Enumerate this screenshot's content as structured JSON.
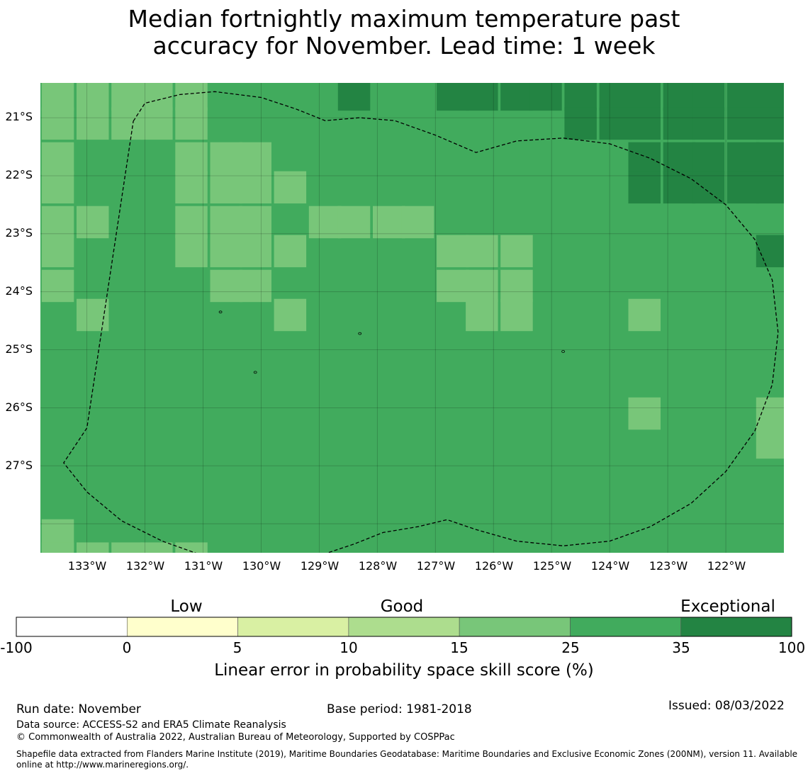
{
  "title": {
    "line1": "Median fortnightly maximum temperature past",
    "line2": "accuracy for November. Lead time: 1 week"
  },
  "map": {
    "lat_labels": [
      "21°S",
      "22°S",
      "23°S",
      "24°S",
      "25°S",
      "26°S",
      "27°S"
    ],
    "lon_labels": [
      "133°W",
      "132°W",
      "131°W",
      "130°W",
      "129°W",
      "128°W",
      "127°W",
      "126°W",
      "125°W",
      "124°W",
      "123°W",
      "122°W"
    ],
    "extent": {
      "lon_min": -133.8,
      "lon_max": -121.0,
      "lat_min": -28.5,
      "lat_max": -20.4
    },
    "grid_resolution_deg": 0.5556,
    "base_category": "25-35",
    "colors": {
      "15-25": "#78c679",
      "25-35": "#41ab5d",
      "35-100": "#238443"
    },
    "cells": [
      {
        "lon": -133.5,
        "lat": -20.6,
        "cat": "15-25"
      },
      {
        "lon": -132.9,
        "lat": -20.6,
        "cat": "15-25"
      },
      {
        "lon": -132.3,
        "lat": -20.6,
        "cat": "15-25"
      },
      {
        "lon": -131.8,
        "lat": -20.6,
        "cat": "15-25"
      },
      {
        "lon": -131.2,
        "lat": -20.6,
        "cat": "15-25"
      },
      {
        "lon": -128.4,
        "lat": -20.6,
        "cat": "35-100"
      },
      {
        "lon": -126.7,
        "lat": -20.6,
        "cat": "35-100"
      },
      {
        "lon": -126.2,
        "lat": -20.6,
        "cat": "35-100"
      },
      {
        "lon": -125.6,
        "lat": -20.6,
        "cat": "35-100"
      },
      {
        "lon": -125.1,
        "lat": -20.6,
        "cat": "35-100"
      },
      {
        "lon": -124.5,
        "lat": -20.6,
        "cat": "35-100"
      },
      {
        "lon": -123.9,
        "lat": -20.6,
        "cat": "35-100"
      },
      {
        "lon": -123.4,
        "lat": -20.6,
        "cat": "35-100"
      },
      {
        "lon": -122.8,
        "lat": -20.6,
        "cat": "35-100"
      },
      {
        "lon": -122.3,
        "lat": -20.6,
        "cat": "35-100"
      },
      {
        "lon": -121.7,
        "lat": -20.6,
        "cat": "35-100"
      },
      {
        "lon": -121.2,
        "lat": -20.6,
        "cat": "35-100"
      },
      {
        "lon": -133.5,
        "lat": -21.1,
        "cat": "15-25"
      },
      {
        "lon": -132.9,
        "lat": -21.1,
        "cat": "15-25"
      },
      {
        "lon": -132.3,
        "lat": -21.1,
        "cat": "15-25"
      },
      {
        "lon": -131.8,
        "lat": -21.1,
        "cat": "15-25"
      },
      {
        "lon": -131.2,
        "lat": -21.1,
        "cat": "15-25"
      },
      {
        "lon": -124.5,
        "lat": -21.1,
        "cat": "35-100"
      },
      {
        "lon": -123.9,
        "lat": -21.1,
        "cat": "35-100"
      },
      {
        "lon": -123.4,
        "lat": -21.1,
        "cat": "35-100"
      },
      {
        "lon": -122.8,
        "lat": -21.1,
        "cat": "35-100"
      },
      {
        "lon": -122.3,
        "lat": -21.1,
        "cat": "35-100"
      },
      {
        "lon": -121.7,
        "lat": -21.1,
        "cat": "35-100"
      },
      {
        "lon": -121.2,
        "lat": -21.1,
        "cat": "35-100"
      },
      {
        "lon": -133.5,
        "lat": -21.7,
        "cat": "15-25"
      },
      {
        "lon": -131.2,
        "lat": -21.7,
        "cat": "15-25"
      },
      {
        "lon": -130.6,
        "lat": -21.7,
        "cat": "15-25"
      },
      {
        "lon": -130.1,
        "lat": -21.7,
        "cat": "15-25"
      },
      {
        "lon": -123.4,
        "lat": -21.7,
        "cat": "35-100"
      },
      {
        "lon": -122.8,
        "lat": -21.7,
        "cat": "35-100"
      },
      {
        "lon": -122.3,
        "lat": -21.7,
        "cat": "35-100"
      },
      {
        "lon": -121.7,
        "lat": -21.7,
        "cat": "35-100"
      },
      {
        "lon": -121.2,
        "lat": -21.7,
        "cat": "35-100"
      },
      {
        "lon": -133.5,
        "lat": -22.2,
        "cat": "15-25"
      },
      {
        "lon": -131.2,
        "lat": -22.2,
        "cat": "15-25"
      },
      {
        "lon": -130.6,
        "lat": -22.2,
        "cat": "15-25"
      },
      {
        "lon": -130.1,
        "lat": -22.2,
        "cat": "15-25"
      },
      {
        "lon": -129.5,
        "lat": -22.2,
        "cat": "15-25"
      },
      {
        "lon": -123.4,
        "lat": -22.2,
        "cat": "35-100"
      },
      {
        "lon": -122.8,
        "lat": -22.2,
        "cat": "35-100"
      },
      {
        "lon": -122.3,
        "lat": -22.2,
        "cat": "35-100"
      },
      {
        "lon": -121.7,
        "lat": -22.2,
        "cat": "35-100"
      },
      {
        "lon": -121.2,
        "lat": -22.2,
        "cat": "35-100"
      },
      {
        "lon": -133.5,
        "lat": -22.8,
        "cat": "15-25"
      },
      {
        "lon": -132.9,
        "lat": -22.8,
        "cat": "15-25"
      },
      {
        "lon": -131.2,
        "lat": -22.8,
        "cat": "15-25"
      },
      {
        "lon": -130.6,
        "lat": -22.8,
        "cat": "15-25"
      },
      {
        "lon": -130.1,
        "lat": -22.8,
        "cat": "15-25"
      },
      {
        "lon": -128.9,
        "lat": -22.8,
        "cat": "15-25"
      },
      {
        "lon": -128.4,
        "lat": -22.8,
        "cat": "15-25"
      },
      {
        "lon": -127.8,
        "lat": -22.8,
        "cat": "15-25"
      },
      {
        "lon": -127.3,
        "lat": -22.8,
        "cat": "15-25"
      },
      {
        "lon": -133.5,
        "lat": -23.3,
        "cat": "15-25"
      },
      {
        "lon": -131.2,
        "lat": -23.3,
        "cat": "15-25"
      },
      {
        "lon": -130.6,
        "lat": -23.3,
        "cat": "15-25"
      },
      {
        "lon": -130.1,
        "lat": -23.3,
        "cat": "15-25"
      },
      {
        "lon": -129.5,
        "lat": -23.3,
        "cat": "15-25"
      },
      {
        "lon": -126.7,
        "lat": -23.3,
        "cat": "15-25"
      },
      {
        "lon": -126.2,
        "lat": -23.3,
        "cat": "15-25"
      },
      {
        "lon": -125.6,
        "lat": -23.3,
        "cat": "15-25"
      },
      {
        "lon": -121.2,
        "lat": -23.3,
        "cat": "35-100"
      },
      {
        "lon": -133.5,
        "lat": -23.9,
        "cat": "15-25"
      },
      {
        "lon": -130.6,
        "lat": -23.9,
        "cat": "15-25"
      },
      {
        "lon": -130.1,
        "lat": -23.9,
        "cat": "15-25"
      },
      {
        "lon": -126.7,
        "lat": -23.9,
        "cat": "15-25"
      },
      {
        "lon": -126.2,
        "lat": -23.9,
        "cat": "15-25"
      },
      {
        "lon": -125.6,
        "lat": -23.9,
        "cat": "15-25"
      },
      {
        "lon": -132.9,
        "lat": -24.4,
        "cat": "15-25"
      },
      {
        "lon": -129.5,
        "lat": -24.4,
        "cat": "15-25"
      },
      {
        "lon": -126.2,
        "lat": -24.4,
        "cat": "15-25"
      },
      {
        "lon": -125.6,
        "lat": -24.4,
        "cat": "15-25"
      },
      {
        "lon": -123.4,
        "lat": -24.4,
        "cat": "15-25"
      },
      {
        "lon": -123.4,
        "lat": -26.1,
        "cat": "15-25"
      },
      {
        "lon": -121.2,
        "lat": -26.1,
        "cat": "15-25"
      },
      {
        "lon": -121.2,
        "lat": -26.6,
        "cat": "15-25"
      },
      {
        "lon": -133.5,
        "lat": -28.2,
        "cat": "15-25"
      },
      {
        "lon": -133.5,
        "lat": -28.6,
        "cat": "15-25"
      },
      {
        "lon": -132.9,
        "lat": -28.6,
        "cat": "15-25"
      },
      {
        "lon": -132.3,
        "lat": -28.6,
        "cat": "15-25"
      },
      {
        "lon": -131.8,
        "lat": -28.6,
        "cat": "15-25"
      },
      {
        "lon": -131.2,
        "lat": -28.6,
        "cat": "15-25"
      }
    ],
    "eez_boundary": [
      [
        -132.2,
        -21.06
      ],
      [
        -132.0,
        -20.75
      ],
      [
        -131.4,
        -20.6
      ],
      [
        -130.8,
        -20.55
      ],
      [
        -130.0,
        -20.65
      ],
      [
        -129.4,
        -20.85
      ],
      [
        -128.9,
        -21.05
      ],
      [
        -128.3,
        -21.0
      ],
      [
        -127.7,
        -21.05
      ],
      [
        -127.0,
        -21.3
      ],
      [
        -126.3,
        -21.6
      ],
      [
        -125.6,
        -21.4
      ],
      [
        -124.8,
        -21.35
      ],
      [
        -124.0,
        -21.45
      ],
      [
        -123.3,
        -21.7
      ],
      [
        -122.6,
        -22.05
      ],
      [
        -122.0,
        -22.5
      ],
      [
        -121.5,
        -23.1
      ],
      [
        -121.2,
        -23.8
      ],
      [
        -121.1,
        -24.7
      ],
      [
        -121.2,
        -25.6
      ],
      [
        -121.5,
        -26.4
      ],
      [
        -122.0,
        -27.1
      ],
      [
        -122.6,
        -27.65
      ],
      [
        -123.3,
        -28.05
      ],
      [
        -124.0,
        -28.3
      ],
      [
        -124.8,
        -28.38
      ],
      [
        -125.6,
        -28.3
      ],
      [
        -126.3,
        -28.1
      ],
      [
        -126.8,
        -27.93
      ],
      [
        -127.3,
        -28.05
      ],
      [
        -127.9,
        -28.15
      ],
      [
        -128.4,
        -28.35
      ],
      [
        -129.0,
        -28.55
      ],
      [
        -129.7,
        -28.66
      ],
      [
        -130.3,
        -28.65
      ],
      [
        -131.0,
        -28.55
      ],
      [
        -131.7,
        -28.3
      ],
      [
        -132.4,
        -27.95
      ],
      [
        -133.0,
        -27.45
      ],
      [
        -133.4,
        -26.95
      ],
      [
        -133.0,
        -26.35
      ],
      [
        -132.2,
        -21.06
      ]
    ],
    "islands": [
      [
        -130.7,
        -24.35
      ],
      [
        -128.3,
        -24.72
      ],
      [
        -124.8,
        -25.03
      ],
      [
        -130.1,
        -25.39
      ]
    ]
  },
  "legend": {
    "categories": [
      "Low",
      "Good",
      "Exceptional"
    ],
    "ticks": [
      "-100",
      "0",
      "5",
      "10",
      "15",
      "25",
      "35",
      "100"
    ],
    "colors": [
      "#ffffff",
      "#ffffcc",
      "#d9f0a3",
      "#addd8e",
      "#78c679",
      "#41ab5d",
      "#238443"
    ],
    "label": "Linear error in probability space skill score (%)"
  },
  "footer": {
    "run_date": "Run date: November",
    "base_period": "Base period: 1981-2018",
    "issued": "Issued: 08/03/2022",
    "data_source": "Data source: ACCESS-S2 and ERA5 Climate Reanalysis",
    "copyright": "© Commonwealth of Australia 2022, Australian Bureau of Meteorology, Supported by COSPPac",
    "shapefile_line1": "Shapefile data extracted from Flanders Marine Institute (2019), Maritime Boundaries Geodatabase: Maritime Boundaries and Exclusive Economic Zones (200NM), version 11. Available",
    "shapefile_line2": "online at http://www.marineregions.org/."
  }
}
